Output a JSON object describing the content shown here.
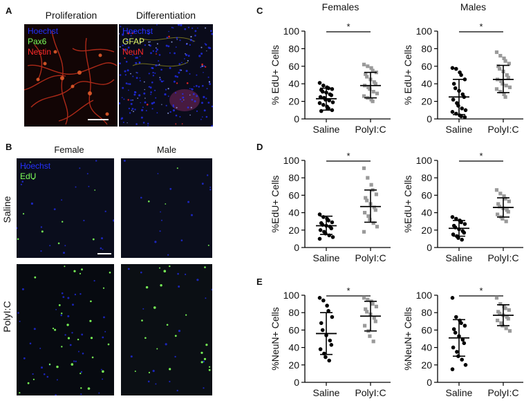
{
  "figure": {
    "panel_labels": {
      "a": "A",
      "b": "B",
      "c": "C",
      "d": "D",
      "e": "E"
    },
    "panel_a": {
      "left_title": "Proliferation",
      "right_title": "Differentiation",
      "left_stains": [
        "Hoechst",
        "Pax6",
        "Nestin"
      ],
      "right_stains": [
        "Hoechst",
        "GFAP",
        "NeuN"
      ]
    },
    "panel_b": {
      "col_female": "Female",
      "col_male": "Male",
      "row_saline": "Saline",
      "row_polyic": "PolyI:C",
      "stains": [
        "Hoechst",
        "EdU"
      ]
    },
    "panel_c": {
      "col_female": "Females",
      "col_male": "Males"
    },
    "colors": {
      "hoechst": "#2430ff",
      "pax6": "#7dff5a",
      "nestin": "#ff2a2a",
      "gfap": "#e8ff6a",
      "neun": "#ff2a2a",
      "edu": "#7dff5a",
      "saline_points": "#000000",
      "polyic_points": "#9a9a9a"
    }
  },
  "chart_data": [
    {
      "id": "c-female",
      "type": "scatter",
      "ylabel": "% EdU+ Cells",
      "ylim": [
        0,
        100
      ],
      "yticks": [
        0,
        20,
        40,
        60,
        80,
        100
      ],
      "categories": [
        "Saline",
        "PolyI:C"
      ],
      "significance": "*",
      "series": [
        {
          "values": [
            41,
            38,
            36,
            35,
            34,
            33,
            31,
            30,
            28,
            27,
            25,
            24,
            22,
            21,
            19,
            18,
            16,
            14,
            12,
            10,
            9
          ],
          "mean": 23,
          "sd_low": 10,
          "sd_high": 35
        },
        {
          "values": [
            62,
            60,
            58,
            55,
            53,
            51,
            48,
            45,
            42,
            40,
            38,
            36,
            34,
            31,
            29,
            26,
            24,
            22,
            20
          ],
          "mean": 38,
          "sd_low": 24,
          "sd_high": 53
        }
      ]
    },
    {
      "id": "c-male",
      "type": "scatter",
      "ylabel": "% EdU+ Cells",
      "ylim": [
        0,
        100
      ],
      "yticks": [
        0,
        20,
        40,
        60,
        80,
        100
      ],
      "categories": [
        "Saline",
        "PolyI:C"
      ],
      "significance": "*",
      "series": [
        {
          "values": [
            58,
            57,
            53,
            50,
            45,
            40,
            35,
            32,
            28,
            25,
            22,
            18,
            15,
            12,
            10,
            8,
            6,
            4,
            3,
            2
          ],
          "mean": 25,
          "sd_low": 5,
          "sd_high": 45
        },
        {
          "values": [
            76,
            72,
            69,
            66,
            63,
            60,
            57,
            54,
            50,
            47,
            45,
            43,
            40,
            38,
            36,
            34,
            31,
            28,
            25
          ],
          "mean": 45,
          "sd_low": 30,
          "sd_high": 61
        }
      ]
    },
    {
      "id": "d-female",
      "type": "scatter",
      "ylabel": "%EdU+ Cells",
      "ylim": [
        0,
        100
      ],
      "yticks": [
        0,
        20,
        40,
        60,
        80,
        100
      ],
      "categories": [
        "Saline",
        "PolyI:C"
      ],
      "significance": "*",
      "series": [
        {
          "values": [
            38,
            35,
            33,
            31,
            29,
            28,
            26,
            25,
            24,
            22,
            20,
            18,
            16,
            14,
            12,
            10
          ],
          "mean": 25,
          "sd_low": 15,
          "sd_high": 36
        },
        {
          "values": [
            91,
            80,
            72,
            66,
            61,
            57,
            54,
            50,
            46,
            43,
            40,
            36,
            32,
            28,
            24,
            18
          ],
          "mean": 47,
          "sd_low": 29,
          "sd_high": 66
        }
      ]
    },
    {
      "id": "d-male",
      "type": "scatter",
      "ylabel": "%EdU+ Cells",
      "ylim": [
        0,
        100
      ],
      "yticks": [
        0,
        20,
        40,
        60,
        80,
        100
      ],
      "categories": [
        "Saline",
        "PolyI:C"
      ],
      "significance": "*",
      "series": [
        {
          "values": [
            35,
            33,
            31,
            29,
            27,
            25,
            23,
            21,
            19,
            17,
            15,
            13,
            11,
            9
          ],
          "mean": 22,
          "sd_low": 13,
          "sd_high": 31
        },
        {
          "values": [
            66,
            62,
            59,
            56,
            53,
            50,
            47,
            45,
            43,
            41,
            38,
            35,
            33,
            30
          ],
          "mean": 46,
          "sd_low": 35,
          "sd_high": 57
        }
      ]
    },
    {
      "id": "e-female",
      "type": "scatter",
      "ylabel": "%NeuN+ Cells",
      "ylim": [
        0,
        100
      ],
      "yticks": [
        0,
        20,
        40,
        60,
        80,
        100
      ],
      "categories": [
        "Saline",
        "PolyI:C"
      ],
      "significance": "*",
      "series": [
        {
          "values": [
            97,
            94,
            88,
            82,
            75,
            68,
            60,
            54,
            48,
            43,
            38,
            33,
            29,
            25
          ],
          "mean": 56,
          "sd_low": 32,
          "sd_high": 80
        },
        {
          "values": [
            97,
            95,
            93,
            90,
            87,
            84,
            81,
            78,
            74,
            70,
            65,
            59,
            53,
            47
          ],
          "mean": 76,
          "sd_low": 59,
          "sd_high": 93
        }
      ]
    },
    {
      "id": "e-male",
      "type": "scatter",
      "ylabel": "%NeuN+ Cells",
      "ylim": [
        0,
        100
      ],
      "yticks": [
        0,
        20,
        40,
        60,
        80,
        100
      ],
      "categories": [
        "Saline",
        "PolyI:C"
      ],
      "significance": "*",
      "series": [
        {
          "values": [
            97,
            75,
            71,
            68,
            65,
            61,
            57,
            53,
            49,
            45,
            40,
            35,
            30,
            26,
            20,
            15
          ],
          "mean": 51,
          "sd_low": 30,
          "sd_high": 72
        },
        {
          "values": [
            97,
            90,
            87,
            85,
            83,
            81,
            79,
            77,
            75,
            73,
            71,
            68,
            65,
            62,
            59
          ],
          "mean": 77,
          "sd_low": 65,
          "sd_high": 89
        }
      ]
    }
  ]
}
